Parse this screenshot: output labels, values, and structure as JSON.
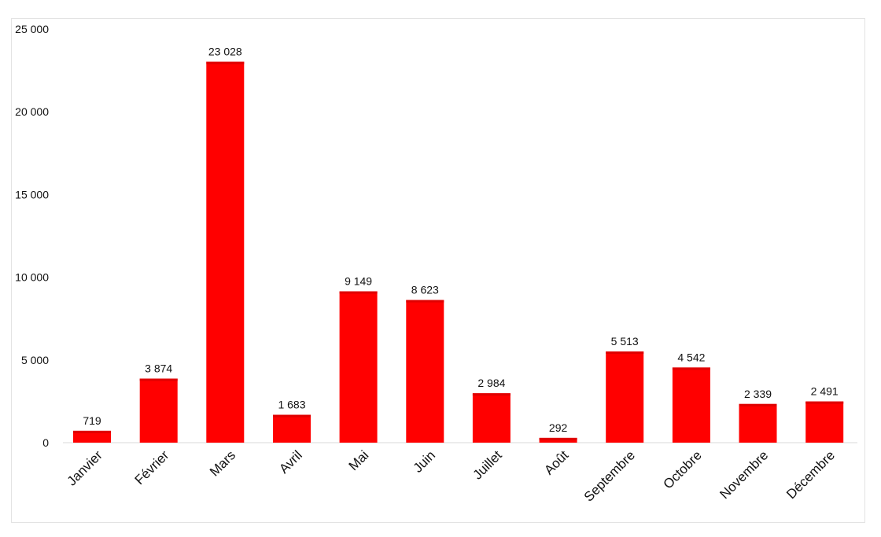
{
  "chart_data": {
    "type": "bar",
    "categories": [
      "Janvier",
      "Février",
      "Mars",
      "Avril",
      "Mai",
      "Juin",
      "Juillet",
      "Août",
      "Septembre",
      "Octobre",
      "Novembre",
      "Décembre"
    ],
    "values": [
      719,
      3874,
      23028,
      1683,
      9149,
      8623,
      2984,
      292,
      5513,
      4542,
      2339,
      2491
    ],
    "data_labels": [
      "719",
      "3 874",
      "23 028",
      "1 683",
      "9 149",
      "8 623",
      "2 984",
      "292",
      "5 513",
      "4 542",
      "2 339",
      "2 491"
    ],
    "y_ticks": [
      0,
      5000,
      10000,
      15000,
      20000,
      25000
    ],
    "y_tick_labels": [
      "0",
      "5 000",
      "10 000",
      "15 000",
      "20 000",
      "25 000"
    ],
    "ylim": [
      0,
      25000
    ],
    "grid": false,
    "legend": "none",
    "bar_color": "#ff0000",
    "title": "",
    "xlabel": "",
    "ylabel": ""
  }
}
